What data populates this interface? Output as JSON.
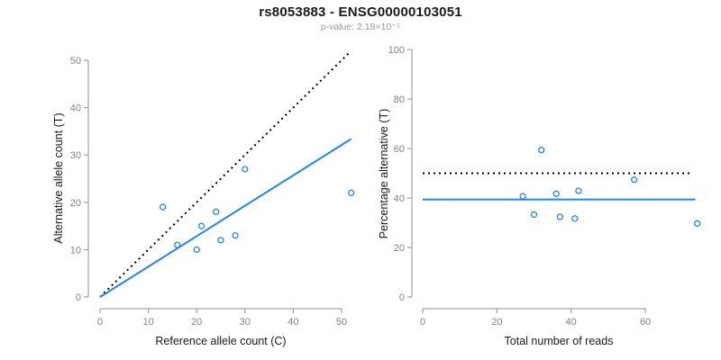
{
  "header": {
    "title": "rs8053883 - ENSG00000103051",
    "subtitle": "p-value: 2.18×10⁻⁵"
  },
  "colors": {
    "accent_blue": "#2185EB",
    "dotted_black": "#000000",
    "axis_gray": "#8f8f8f",
    "tick_text_gray": "#838383",
    "label_black": "#1a1a1a",
    "subtitle_gray": "#999999",
    "background": "#ffffff"
  },
  "chart_data": [
    {
      "type": "scatter",
      "panel": "left",
      "xlabel": "Reference allele count (C)",
      "ylabel": "Alternative allele count (T)",
      "xlim": [
        0,
        52
      ],
      "ylim": [
        0,
        52
      ],
      "xticks": [
        0,
        10,
        20,
        30,
        40,
        50
      ],
      "yticks": [
        0,
        10,
        20,
        30,
        40,
        50
      ],
      "grid": false,
      "legend_position": "none",
      "marker": "open-circle",
      "points": [
        {
          "x": 13,
          "y": 19
        },
        {
          "x": 16,
          "y": 11
        },
        {
          "x": 20,
          "y": 10
        },
        {
          "x": 21,
          "y": 15
        },
        {
          "x": 24,
          "y": 18
        },
        {
          "x": 25,
          "y": 12
        },
        {
          "x": 28,
          "y": 13
        },
        {
          "x": 30,
          "y": 27
        },
        {
          "x": 52,
          "y": 22
        }
      ],
      "lines": [
        {
          "name": "identity-line",
          "style": "dotted",
          "color": "#000000",
          "x1": 0,
          "y1": 0,
          "x2": 51.5,
          "y2": 51.5
        },
        {
          "name": "regression-line",
          "style": "solid",
          "color": "#2185EB",
          "x1": 0,
          "y1": 0,
          "x2": 52,
          "y2": 33.4
        }
      ]
    },
    {
      "type": "scatter",
      "panel": "right",
      "xlabel": "Total number of reads",
      "ylabel": "Percentage alternative (T)",
      "xlim": [
        0,
        75
      ],
      "ylim": [
        0,
        100
      ],
      "xticks": [
        0,
        20,
        40,
        60
      ],
      "yticks": [
        0,
        20,
        40,
        60,
        80,
        100
      ],
      "grid": false,
      "legend_position": "none",
      "marker": "open-circle",
      "points": [
        {
          "x": 27,
          "y": 40.7
        },
        {
          "x": 30,
          "y": 33.3
        },
        {
          "x": 32,
          "y": 59.4
        },
        {
          "x": 36,
          "y": 41.7
        },
        {
          "x": 37,
          "y": 32.4
        },
        {
          "x": 41,
          "y": 31.7
        },
        {
          "x": 42,
          "y": 42.9
        },
        {
          "x": 57,
          "y": 47.4
        },
        {
          "x": 74,
          "y": 29.7
        }
      ],
      "lines": [
        {
          "name": "null-50pct-line",
          "style": "dotted",
          "color": "#000000",
          "x1": 0,
          "y1": 50,
          "x2": 72.5,
          "y2": 50
        },
        {
          "name": "mean-percentage-line",
          "style": "solid",
          "color": "#2185EB",
          "x1": 0,
          "y1": 39.4,
          "x2": 73.5,
          "y2": 39.4
        }
      ]
    }
  ]
}
